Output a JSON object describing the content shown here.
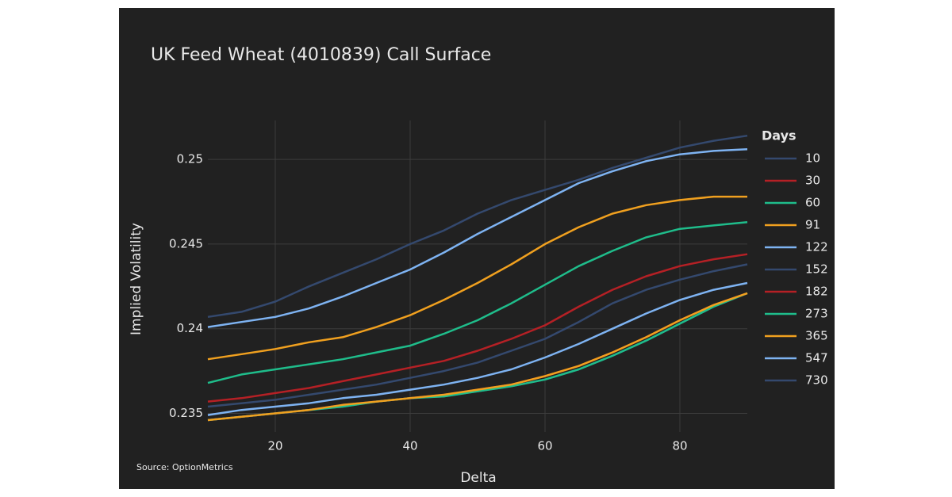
{
  "chart_data": {
    "type": "line",
    "title": "UK Feed Wheat (4010839) Call Surface",
    "x_label": "Delta",
    "y_label": "Implied Volatility",
    "legend_title": "Days",
    "source": "Source: OptionMetrics",
    "x": [
      10,
      15,
      20,
      25,
      30,
      35,
      40,
      45,
      50,
      55,
      60,
      65,
      70,
      75,
      80,
      85,
      90
    ],
    "xlim": [
      10,
      90
    ],
    "xticks": [
      20,
      40,
      60,
      80
    ],
    "ylim": [
      0.2339,
      0.2523
    ],
    "yticks": [
      0.235,
      0.24,
      0.245,
      0.25
    ],
    "grid": true,
    "legend": "right",
    "series": [
      {
        "name": "10",
        "color": "#34496e",
        "values": [
          0.2346,
          0.2348,
          0.235,
          0.2352,
          0.2354,
          0.2357,
          0.2359,
          0.236,
          0.2363,
          0.2366,
          0.237,
          0.2376,
          0.2384,
          0.2393,
          0.2403,
          0.2413,
          0.2421
        ]
      },
      {
        "name": "30",
        "color": "#b52025",
        "values": [
          0.2346,
          0.2348,
          0.235,
          0.2352,
          0.2355,
          0.2357,
          0.2359,
          0.2361,
          0.2364,
          0.2367,
          0.2372,
          0.2378,
          0.2386,
          0.2395,
          0.2405,
          0.2414,
          0.2421
        ]
      },
      {
        "name": "60",
        "color": "#1fbd8b",
        "values": [
          0.2346,
          0.2348,
          0.235,
          0.2352,
          0.2354,
          0.2357,
          0.2359,
          0.236,
          0.2363,
          0.2366,
          0.237,
          0.2376,
          0.2384,
          0.2393,
          0.2403,
          0.2413,
          0.2421
        ]
      },
      {
        "name": "91",
        "color": "#f0a01f",
        "values": [
          0.2346,
          0.2348,
          0.235,
          0.2352,
          0.2355,
          0.2357,
          0.2359,
          0.2361,
          0.2364,
          0.2367,
          0.2372,
          0.2378,
          0.2386,
          0.2395,
          0.2405,
          0.2414,
          0.2421
        ]
      },
      {
        "name": "122",
        "color": "#7eb3f2",
        "values": [
          0.2349,
          0.2352,
          0.2354,
          0.2356,
          0.2359,
          0.2361,
          0.2364,
          0.2367,
          0.2371,
          0.2376,
          0.2383,
          0.2391,
          0.24,
          0.2409,
          0.2417,
          0.2423,
          0.2427
        ]
      },
      {
        "name": "152",
        "color": "#34496e",
        "values": [
          0.2354,
          0.2356,
          0.2358,
          0.2361,
          0.2364,
          0.2367,
          0.2371,
          0.2375,
          0.238,
          0.2387,
          0.2394,
          0.2404,
          0.2415,
          0.2423,
          0.2429,
          0.2434,
          0.2438
        ]
      },
      {
        "name": "182",
        "color": "#b52025",
        "values": [
          0.2357,
          0.2359,
          0.2362,
          0.2365,
          0.2369,
          0.2373,
          0.2377,
          0.2381,
          0.2387,
          0.2394,
          0.2402,
          0.2413,
          0.2423,
          0.2431,
          0.2437,
          0.2441,
          0.2444
        ]
      },
      {
        "name": "273",
        "color": "#1fbd8b",
        "values": [
          0.2368,
          0.2373,
          0.2376,
          0.2379,
          0.2382,
          0.2386,
          0.239,
          0.2397,
          0.2405,
          0.2415,
          0.2426,
          0.2437,
          0.2446,
          0.2454,
          0.2459,
          0.2461,
          0.2463
        ]
      },
      {
        "name": "365",
        "color": "#f0a01f",
        "values": [
          0.2382,
          0.2385,
          0.2388,
          0.2392,
          0.2395,
          0.2401,
          0.2408,
          0.2417,
          0.2427,
          0.2438,
          0.245,
          0.246,
          0.2468,
          0.2473,
          0.2476,
          0.2478,
          0.2478
        ]
      },
      {
        "name": "547",
        "color": "#7eb3f2",
        "values": [
          0.2401,
          0.2404,
          0.2407,
          0.2412,
          0.2419,
          0.2427,
          0.2435,
          0.2445,
          0.2456,
          0.2466,
          0.2476,
          0.2486,
          0.2493,
          0.2499,
          0.2503,
          0.2505,
          0.2506
        ]
      },
      {
        "name": "730",
        "color": "#34496e",
        "values": [
          0.2407,
          0.241,
          0.2416,
          0.2425,
          0.2433,
          0.2441,
          0.245,
          0.2458,
          0.2468,
          0.2476,
          0.2482,
          0.2488,
          0.2495,
          0.2501,
          0.2507,
          0.2511,
          0.2514
        ]
      }
    ]
  }
}
